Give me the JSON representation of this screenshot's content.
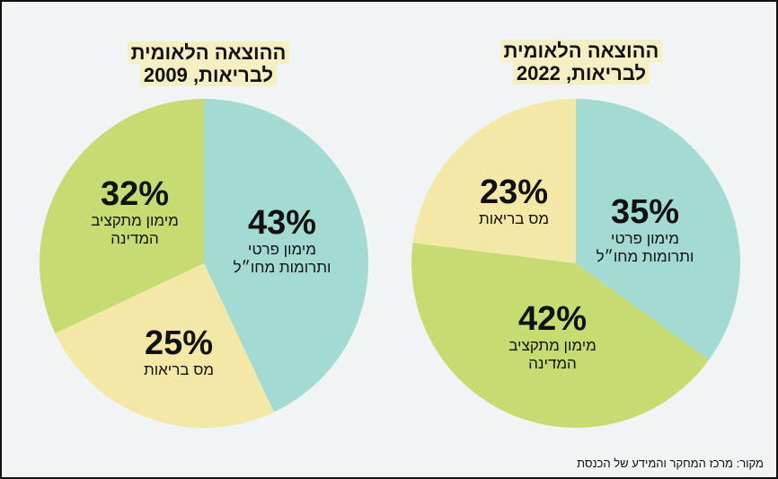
{
  "colors": {
    "teal": "#a3dbd3",
    "green": "#c6dc72",
    "yellow": "#f3e8a5"
  },
  "chart_data": [
    {
      "type": "pie",
      "title_line1": "ההוצאה הלאומית",
      "title_line2": "לבריאות, 2009",
      "slices": [
        {
          "value": 43,
          "label_pct": "43%",
          "label_l1": "מימון פרטי",
          "label_l2": "ותרומות מחו״ל",
          "color": "teal"
        },
        {
          "value": 25,
          "label_pct": "25%",
          "label_l1": "מס בריאות",
          "label_l2": "",
          "color": "yellow"
        },
        {
          "value": 32,
          "label_pct": "32%",
          "label_l1": "מימון מתקציב",
          "label_l2": "המדינה",
          "color": "green"
        }
      ]
    },
    {
      "type": "pie",
      "title_line1": "ההוצאה הלאומית",
      "title_line2": "לבריאות, 2022",
      "slices": [
        {
          "value": 35,
          "label_pct": "35%",
          "label_l1": "מימון פרטי",
          "label_l2": "ותרומות מחו״ל",
          "color": "teal"
        },
        {
          "value": 42,
          "label_pct": "42%",
          "label_l1": "מימון מתקציב",
          "label_l2": "המדינה",
          "color": "green"
        },
        {
          "value": 23,
          "label_pct": "23%",
          "label_l1": "מס בריאות",
          "label_l2": "",
          "color": "yellow"
        }
      ]
    }
  ],
  "source": "מקור: מרכז המחקר והמידע של הכנסת"
}
